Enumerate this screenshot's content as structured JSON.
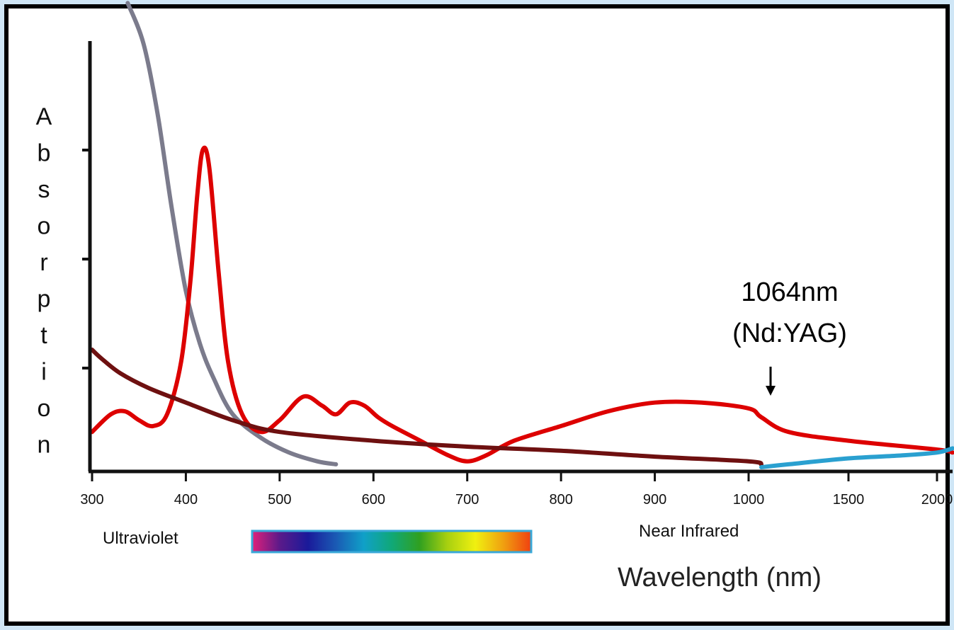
{
  "chart_data": {
    "type": "line",
    "title": "",
    "xlabel": "Wavelength (nm)",
    "ylabel": "Absorption",
    "x_ticks": [
      "300",
      "400",
      "500",
      "600",
      "700",
      "800",
      "900",
      "1000",
      "1500",
      "2000"
    ],
    "y_ticks": 3,
    "grid": false,
    "legend": "none",
    "region_labels": {
      "ultraviolet": "Ultraviolet",
      "near_infrared": "Near Infrared"
    },
    "annotation": {
      "line1": "1064nm",
      "line2": "(Nd:YAG)",
      "x": 1064
    },
    "spectrum_bar_colors": [
      "#e0207a",
      "#5a1a8a",
      "#1a1a9a",
      "#1a5ab4",
      "#10a0c8",
      "#10a878",
      "#30a020",
      "#a8d010",
      "#f0f010",
      "#f0a010",
      "#f04010"
    ],
    "series": [
      {
        "color": "#7b7b8c",
        "points": [
          [
            338,
            7.9
          ],
          [
            355,
            7.2
          ],
          [
            370,
            6.0
          ],
          [
            385,
            4.4
          ],
          [
            400,
            3.0
          ],
          [
            415,
            2.1
          ],
          [
            430,
            1.5
          ],
          [
            450,
            0.9
          ],
          [
            480,
            0.5
          ],
          [
            510,
            0.25
          ],
          [
            540,
            0.1
          ],
          [
            560,
            0.05
          ]
        ]
      },
      {
        "color": "#dd0000",
        "points": [
          [
            300,
            0.6
          ],
          [
            320,
            0.9
          ],
          [
            335,
            0.95
          ],
          [
            350,
            0.8
          ],
          [
            365,
            0.7
          ],
          [
            380,
            0.9
          ],
          [
            395,
            1.8
          ],
          [
            405,
            3.2
          ],
          [
            412,
            4.6
          ],
          [
            418,
            5.4
          ],
          [
            425,
            5.1
          ],
          [
            435,
            3.3
          ],
          [
            445,
            1.8
          ],
          [
            460,
            0.9
          ],
          [
            480,
            0.6
          ],
          [
            500,
            0.8
          ],
          [
            525,
            1.2
          ],
          [
            545,
            1.05
          ],
          [
            560,
            0.9
          ],
          [
            575,
            1.1
          ],
          [
            590,
            1.05
          ],
          [
            605,
            0.85
          ],
          [
            620,
            0.7
          ],
          [
            650,
            0.45
          ],
          [
            680,
            0.2
          ],
          [
            700,
            0.1
          ],
          [
            720,
            0.2
          ],
          [
            750,
            0.45
          ],
          [
            800,
            0.7
          ],
          [
            850,
            0.95
          ],
          [
            900,
            1.1
          ],
          [
            950,
            1.1
          ],
          [
            1000,
            1.0
          ],
          [
            1064,
            0.85
          ],
          [
            1200,
            0.6
          ],
          [
            1500,
            0.45
          ],
          [
            2000,
            0.3
          ],
          [
            2100,
            0.25
          ]
        ]
      },
      {
        "color": "#6e1010",
        "points": [
          [
            300,
            2.0
          ],
          [
            310,
            1.85
          ],
          [
            330,
            1.6
          ],
          [
            360,
            1.35
          ],
          [
            400,
            1.1
          ],
          [
            450,
            0.8
          ],
          [
            500,
            0.6
          ],
          [
            600,
            0.45
          ],
          [
            700,
            0.35
          ],
          [
            800,
            0.28
          ],
          [
            900,
            0.18
          ],
          [
            1000,
            0.1
          ],
          [
            1064,
            0.05
          ]
        ]
      },
      {
        "color": "#2aa0d0",
        "points": [
          [
            1064,
            0.0
          ],
          [
            1200,
            0.05
          ],
          [
            1500,
            0.15
          ],
          [
            1800,
            0.2
          ],
          [
            2000,
            0.25
          ],
          [
            2100,
            0.32
          ]
        ]
      }
    ]
  }
}
